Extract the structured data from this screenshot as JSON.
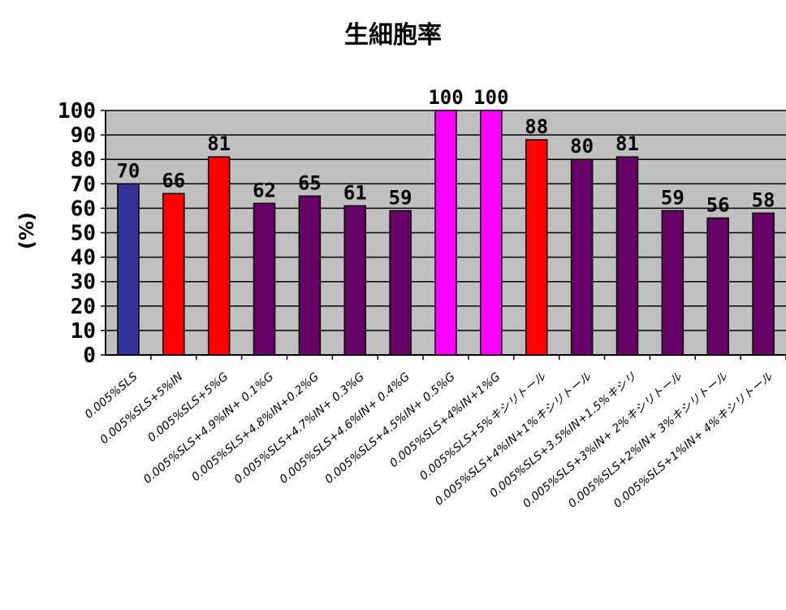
{
  "chart_data": {
    "type": "bar",
    "title": "生細胞率",
    "xlabel": "",
    "ylabel": "(%)",
    "ylim": [
      0,
      100
    ],
    "yticks": [
      "0",
      "10",
      "20",
      "30",
      "40",
      "50",
      "60",
      "70",
      "80",
      "90",
      "100"
    ],
    "grid": true,
    "plot_background": "#c0c0c0",
    "categories": [
      "0.005%SLS",
      "0.005%SLS+5%IN",
      "0.005%SLS+5%G",
      "0.005%SLS+4.9%IN+ 0.1%G",
      "0.005%SLS+4.8%IN+0.2%G",
      "0.005%SLS+4.7%IN+ 0.3%G",
      "0.005%SLS+4.6%IN+ 0.4%G",
      "0.005%SLS+4.5%IN+ 0.5%G",
      "0.005%SLS+4%IN+1%G",
      "0.005%SLS+5%キシリトール",
      "0.005%SLS+4%IN+1%キシリトール",
      "0.005%SLS+3.5%IN+1.5%キシリ",
      "0.005%SLS+3%IN+ 2%キシリトール",
      "0.005%SLS+2%IN+ 3%キシリトール",
      "0.005%SLS+1%IN+ 4%キシリトール"
    ],
    "values": [
      70,
      66,
      81,
      62,
      65,
      61,
      59,
      100,
      100,
      88,
      80,
      81,
      59,
      56,
      58
    ],
    "value_labels": [
      "70",
      "66",
      "81",
      "62",
      "65",
      "61",
      "59",
      "100",
      "100",
      "88",
      "80",
      "81",
      "59",
      "56",
      "58"
    ],
    "bar_colors": [
      "#333399",
      "#ff0000",
      "#ff0000",
      "#660066",
      "#660066",
      "#660066",
      "#660066",
      "#ff00ff",
      "#ff00ff",
      "#ff0000",
      "#660066",
      "#660066",
      "#660066",
      "#660066",
      "#660066"
    ]
  }
}
